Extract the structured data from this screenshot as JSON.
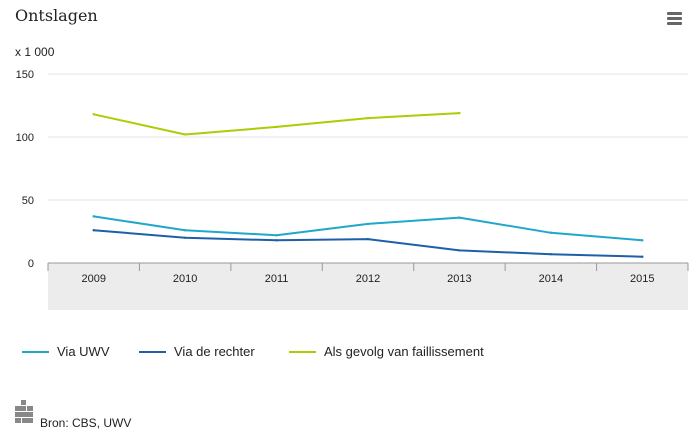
{
  "chart_data": {
    "type": "line",
    "title": "Ontslagen",
    "ylabel": "x 1 000",
    "xlabel": "",
    "categories": [
      "2009",
      "2010",
      "2011",
      "2012",
      "2013",
      "2014",
      "2015"
    ],
    "ylim": [
      0,
      150
    ],
    "yticks": [
      "0",
      "50",
      "100",
      "150"
    ],
    "grid": true,
    "legend_position": "bottom",
    "series": [
      {
        "name": "Via UWV",
        "color": "#1fa8c9",
        "values": [
          37,
          26,
          22,
          31,
          36,
          24,
          18
        ]
      },
      {
        "name": "Via de rechter",
        "color": "#1d5fa8",
        "values": [
          26,
          20,
          18,
          19,
          10,
          7,
          5
        ]
      },
      {
        "name": "Als gevolg van faillissement",
        "color": "#afcb05",
        "values": [
          118,
          102,
          108,
          115,
          119,
          null,
          null
        ]
      }
    ]
  },
  "source": "Bron: CBS, UWV",
  "icons": {
    "menu": "hamburger-menu-icon",
    "logo": "cbs-logo-icon"
  }
}
